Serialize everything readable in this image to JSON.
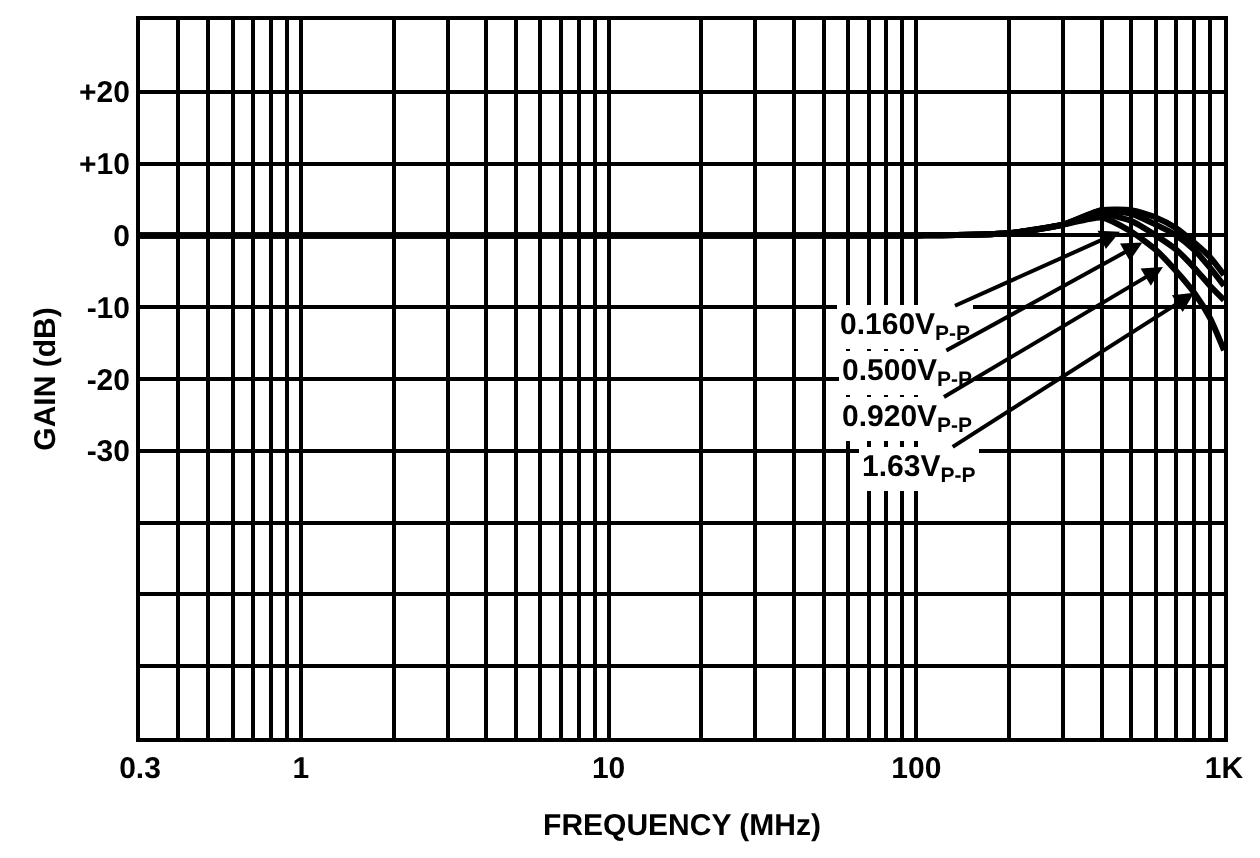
{
  "chart_data": {
    "type": "line",
    "xlabel": "FREQUENCY (MHz)",
    "ylabel": "GAIN (dB)",
    "log": "x",
    "grid": true,
    "line_style": "solid",
    "marker": "none",
    "x": [
      0.3,
      1,
      10,
      100,
      200,
      300,
      400,
      500,
      600,
      700,
      800,
      900,
      1000
    ],
    "series": [
      {
        "color": "#000000",
        "values": [
          0,
          0,
          0,
          0,
          0.3,
          1.5,
          3.5,
          3.5,
          2.5,
          1,
          -1,
          -3,
          -5.5
        ]
      },
      {
        "color": "#000000",
        "values": [
          0,
          0,
          0,
          0,
          0.3,
          1.5,
          3.5,
          3,
          1.5,
          0,
          -2,
          -4.5,
          -7
        ]
      },
      {
        "color": "#000000",
        "values": [
          0,
          0,
          0,
          0,
          0.3,
          1.5,
          3,
          2,
          0,
          -2,
          -4.5,
          -7,
          -9
        ]
      },
      {
        "color": "#000000",
        "values": [
          0,
          0,
          0,
          0,
          0.3,
          1.5,
          2.5,
          0.5,
          -2,
          -5,
          -8,
          -11.5,
          -16
        ]
      }
    ],
    "xlim": [
      0.3,
      1000
    ],
    "ylim": [
      -70,
      30
    ],
    "xticks": [
      0.3,
      {
        "value": 0.4,
        "label": null
      },
      {
        "value": 0.5,
        "label": null
      },
      {
        "value": 0.6,
        "label": null
      },
      {
        "value": 0.7,
        "label": null
      },
      {
        "value": 0.8,
        "label": null
      },
      {
        "value": 0.9,
        "label": null
      },
      1,
      {
        "value": 2,
        "label": null
      },
      {
        "value": 3,
        "label": null
      },
      {
        "value": 4,
        "label": null
      },
      {
        "value": 5,
        "label": null
      },
      {
        "value": 6,
        "label": null
      },
      {
        "value": 7,
        "label": null
      },
      {
        "value": 8,
        "label": null
      },
      {
        "value": 9,
        "label": null
      },
      10,
      {
        "value": 20,
        "label": null
      },
      {
        "value": 30,
        "label": null
      },
      {
        "value": 40,
        "label": null
      },
      {
        "value": 50,
        "label": null
      },
      {
        "value": 60,
        "label": null
      },
      {
        "value": 70,
        "label": null
      },
      {
        "value": 80,
        "label": null
      },
      {
        "value": 90,
        "label": null
      },
      100,
      {
        "value": 200,
        "label": null
      },
      {
        "value": 300,
        "label": null
      },
      {
        "value": 400,
        "label": null
      },
      {
        "value": 500,
        "label": null
      },
      {
        "value": 600,
        "label": null
      },
      {
        "value": 700,
        "label": null
      },
      {
        "value": 800,
        "label": null
      },
      {
        "value": 900,
        "label": null
      },
      {
        "value": 1000,
        "label": "1K"
      }
    ],
    "yticks": [
      {
        "value": 20,
        "label": "+20"
      },
      {
        "value": 10,
        "label": "+10"
      },
      0,
      -10,
      -20,
      -30,
      {
        "value": -40,
        "label": null
      },
      {
        "value": -50,
        "label": null
      },
      {
        "value": -60,
        "label": null
      }
    ],
    "annotations": [
      {
        "text": "0.160V$_{P-P}$",
        "x": 459,
        "y": 0.5
      },
      {
        "text": "0.500V$_{P-P}$",
        "x": 543,
        "y": -1
      },
      {
        "text": "0.920V$_{P-P}$",
        "x": 633,
        "y": -4.4
      },
      {
        "text": "1.63V$_{P-P}$",
        "x": 800,
        "y": -8
      }
    ]
  }
}
